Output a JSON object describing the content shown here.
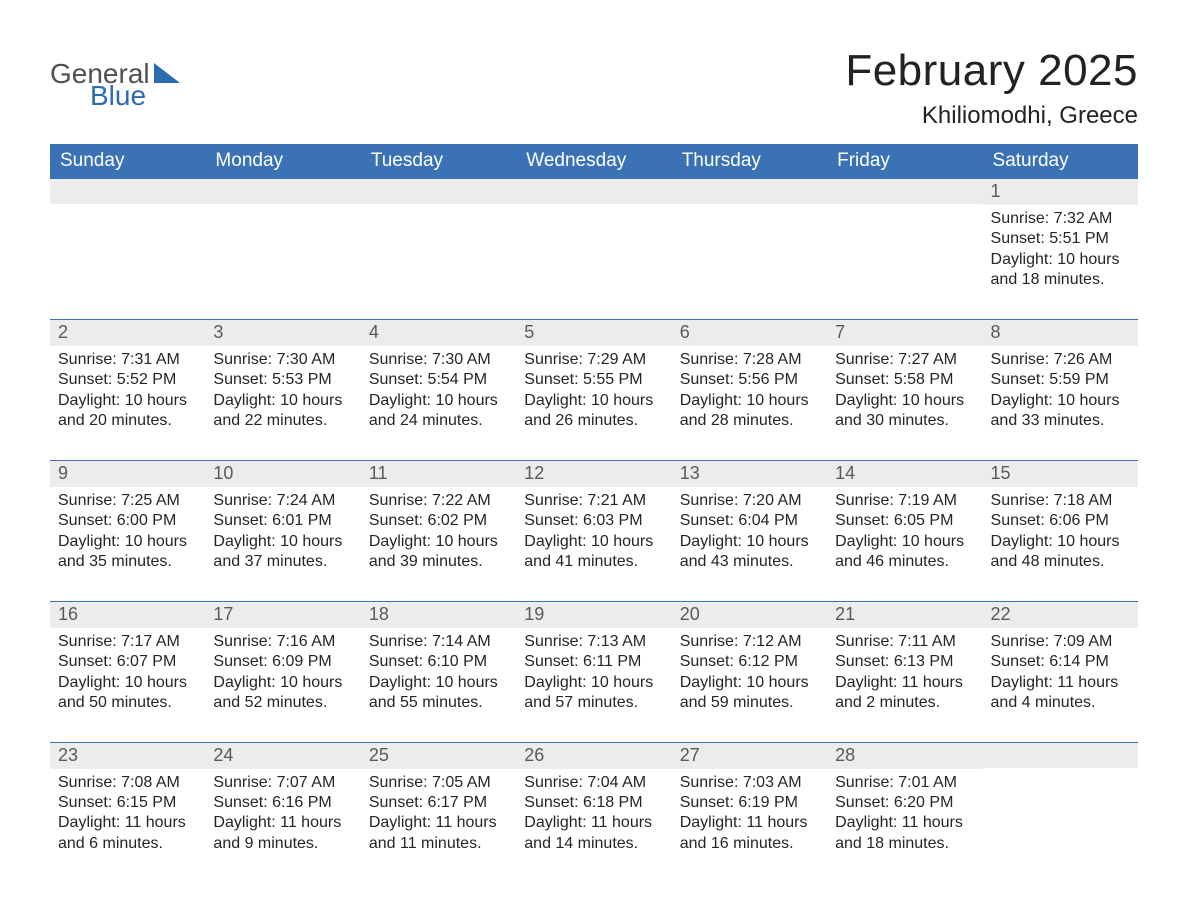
{
  "logo": {
    "general": "General",
    "blue": "Blue"
  },
  "title": "February 2025",
  "location": "Khiliomodhi, Greece",
  "colors": {
    "header_bg": "#3a72b5",
    "header_text": "#ffffff",
    "strip_bg": "#ececec",
    "week_border": "#3a72b5",
    "logo_blue": "#2b6cb0",
    "body_text": "#252525"
  },
  "dow": [
    "Sunday",
    "Monday",
    "Tuesday",
    "Wednesday",
    "Thursday",
    "Friday",
    "Saturday"
  ],
  "weeks": [
    [
      {
        "n": "",
        "l1": "",
        "l2": "",
        "l3": "",
        "l4": ""
      },
      {
        "n": "",
        "l1": "",
        "l2": "",
        "l3": "",
        "l4": ""
      },
      {
        "n": "",
        "l1": "",
        "l2": "",
        "l3": "",
        "l4": ""
      },
      {
        "n": "",
        "l1": "",
        "l2": "",
        "l3": "",
        "l4": ""
      },
      {
        "n": "",
        "l1": "",
        "l2": "",
        "l3": "",
        "l4": ""
      },
      {
        "n": "",
        "l1": "",
        "l2": "",
        "l3": "",
        "l4": ""
      },
      {
        "n": "1",
        "l1": "Sunrise: 7:32 AM",
        "l2": "Sunset: 5:51 PM",
        "l3": "Daylight: 10 hours",
        "l4": "and 18 minutes."
      }
    ],
    [
      {
        "n": "2",
        "l1": "Sunrise: 7:31 AM",
        "l2": "Sunset: 5:52 PM",
        "l3": "Daylight: 10 hours",
        "l4": "and 20 minutes."
      },
      {
        "n": "3",
        "l1": "Sunrise: 7:30 AM",
        "l2": "Sunset: 5:53 PM",
        "l3": "Daylight: 10 hours",
        "l4": "and 22 minutes."
      },
      {
        "n": "4",
        "l1": "Sunrise: 7:30 AM",
        "l2": "Sunset: 5:54 PM",
        "l3": "Daylight: 10 hours",
        "l4": "and 24 minutes."
      },
      {
        "n": "5",
        "l1": "Sunrise: 7:29 AM",
        "l2": "Sunset: 5:55 PM",
        "l3": "Daylight: 10 hours",
        "l4": "and 26 minutes."
      },
      {
        "n": "6",
        "l1": "Sunrise: 7:28 AM",
        "l2": "Sunset: 5:56 PM",
        "l3": "Daylight: 10 hours",
        "l4": "and 28 minutes."
      },
      {
        "n": "7",
        "l1": "Sunrise: 7:27 AM",
        "l2": "Sunset: 5:58 PM",
        "l3": "Daylight: 10 hours",
        "l4": "and 30 minutes."
      },
      {
        "n": "8",
        "l1": "Sunrise: 7:26 AM",
        "l2": "Sunset: 5:59 PM",
        "l3": "Daylight: 10 hours",
        "l4": "and 33 minutes."
      }
    ],
    [
      {
        "n": "9",
        "l1": "Sunrise: 7:25 AM",
        "l2": "Sunset: 6:00 PM",
        "l3": "Daylight: 10 hours",
        "l4": "and 35 minutes."
      },
      {
        "n": "10",
        "l1": "Sunrise: 7:24 AM",
        "l2": "Sunset: 6:01 PM",
        "l3": "Daylight: 10 hours",
        "l4": "and 37 minutes."
      },
      {
        "n": "11",
        "l1": "Sunrise: 7:22 AM",
        "l2": "Sunset: 6:02 PM",
        "l3": "Daylight: 10 hours",
        "l4": "and 39 minutes."
      },
      {
        "n": "12",
        "l1": "Sunrise: 7:21 AM",
        "l2": "Sunset: 6:03 PM",
        "l3": "Daylight: 10 hours",
        "l4": "and 41 minutes."
      },
      {
        "n": "13",
        "l1": "Sunrise: 7:20 AM",
        "l2": "Sunset: 6:04 PM",
        "l3": "Daylight: 10 hours",
        "l4": "and 43 minutes."
      },
      {
        "n": "14",
        "l1": "Sunrise: 7:19 AM",
        "l2": "Sunset: 6:05 PM",
        "l3": "Daylight: 10 hours",
        "l4": "and 46 minutes."
      },
      {
        "n": "15",
        "l1": "Sunrise: 7:18 AM",
        "l2": "Sunset: 6:06 PM",
        "l3": "Daylight: 10 hours",
        "l4": "and 48 minutes."
      }
    ],
    [
      {
        "n": "16",
        "l1": "Sunrise: 7:17 AM",
        "l2": "Sunset: 6:07 PM",
        "l3": "Daylight: 10 hours",
        "l4": "and 50 minutes."
      },
      {
        "n": "17",
        "l1": "Sunrise: 7:16 AM",
        "l2": "Sunset: 6:09 PM",
        "l3": "Daylight: 10 hours",
        "l4": "and 52 minutes."
      },
      {
        "n": "18",
        "l1": "Sunrise: 7:14 AM",
        "l2": "Sunset: 6:10 PM",
        "l3": "Daylight: 10 hours",
        "l4": "and 55 minutes."
      },
      {
        "n": "19",
        "l1": "Sunrise: 7:13 AM",
        "l2": "Sunset: 6:11 PM",
        "l3": "Daylight: 10 hours",
        "l4": "and 57 minutes."
      },
      {
        "n": "20",
        "l1": "Sunrise: 7:12 AM",
        "l2": "Sunset: 6:12 PM",
        "l3": "Daylight: 10 hours",
        "l4": "and 59 minutes."
      },
      {
        "n": "21",
        "l1": "Sunrise: 7:11 AM",
        "l2": "Sunset: 6:13 PM",
        "l3": "Daylight: 11 hours",
        "l4": "and 2 minutes."
      },
      {
        "n": "22",
        "l1": "Sunrise: 7:09 AM",
        "l2": "Sunset: 6:14 PM",
        "l3": "Daylight: 11 hours",
        "l4": "and 4 minutes."
      }
    ],
    [
      {
        "n": "23",
        "l1": "Sunrise: 7:08 AM",
        "l2": "Sunset: 6:15 PM",
        "l3": "Daylight: 11 hours",
        "l4": "and 6 minutes."
      },
      {
        "n": "24",
        "l1": "Sunrise: 7:07 AM",
        "l2": "Sunset: 6:16 PM",
        "l3": "Daylight: 11 hours",
        "l4": "and 9 minutes."
      },
      {
        "n": "25",
        "l1": "Sunrise: 7:05 AM",
        "l2": "Sunset: 6:17 PM",
        "l3": "Daylight: 11 hours",
        "l4": "and 11 minutes."
      },
      {
        "n": "26",
        "l1": "Sunrise: 7:04 AM",
        "l2": "Sunset: 6:18 PM",
        "l3": "Daylight: 11 hours",
        "l4": "and 14 minutes."
      },
      {
        "n": "27",
        "l1": "Sunrise: 7:03 AM",
        "l2": "Sunset: 6:19 PM",
        "l3": "Daylight: 11 hours",
        "l4": "and 16 minutes."
      },
      {
        "n": "28",
        "l1": "Sunrise: 7:01 AM",
        "l2": "Sunset: 6:20 PM",
        "l3": "Daylight: 11 hours",
        "l4": "and 18 minutes."
      },
      {
        "n": "",
        "l1": "",
        "l2": "",
        "l3": "",
        "l4": ""
      }
    ]
  ]
}
